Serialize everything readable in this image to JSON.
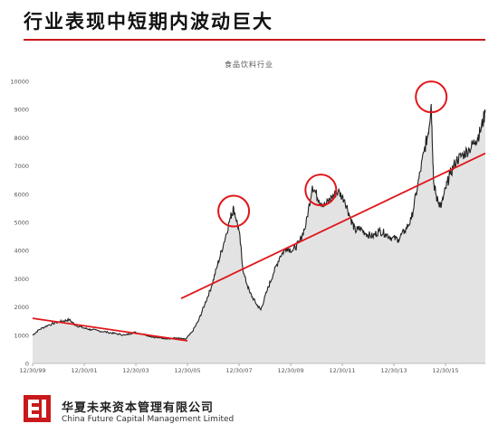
{
  "slide_title": "行业表现中短期内波动巨大",
  "company": {
    "name_cn": "华夏未来资本管理有限公司",
    "name_en": "China Future Capital Management Limited"
  },
  "colors": {
    "title_rule": "#c8191b",
    "trend": "#e0161a",
    "series_line": "#222222",
    "series_fill": "#e3e3e3",
    "circle": "#e0161a"
  },
  "chart_data": {
    "type": "area",
    "title": "食品饮料行业",
    "xlabel": "",
    "ylabel": "",
    "ylim": [
      0,
      10000
    ],
    "yticks": [
      0,
      1000,
      2000,
      3000,
      4000,
      5000,
      6000,
      7000,
      8000,
      9000,
      10000
    ],
    "xlim": [
      "1999-12-30",
      "2017-07-15"
    ],
    "xticks": [
      {
        "date": "1999-12-30",
        "label": "12/30/99"
      },
      {
        "date": "2001-12-30",
        "label": "12/30/01"
      },
      {
        "date": "2003-12-30",
        "label": "12/30/03"
      },
      {
        "date": "2005-12-30",
        "label": "12/30/05"
      },
      {
        "date": "2007-12-30",
        "label": "12/30/07"
      },
      {
        "date": "2009-12-30",
        "label": "12/30/09"
      },
      {
        "date": "2011-12-30",
        "label": "12/30/11"
      },
      {
        "date": "2013-12-30",
        "label": "12/30/13"
      },
      {
        "date": "2015-12-30",
        "label": "12/30/15"
      }
    ],
    "grid": false,
    "legend": "none",
    "series": [
      {
        "x": [
          "1999-12-30",
          "2000-04-01",
          "2000-08-01",
          "2000-12-01",
          "2001-03-01",
          "2001-06-01",
          "2001-09-01",
          "2001-12-30",
          "2002-04-01",
          "2002-08-01",
          "2002-12-01",
          "2003-04-01",
          "2003-08-01",
          "2003-12-01",
          "2004-04-01",
          "2004-08-01",
          "2004-12-01",
          "2005-04-01",
          "2005-08-01",
          "2005-12-01",
          "2006-03-01",
          "2006-06-01",
          "2006-09-01",
          "2006-12-01",
          "2007-03-01",
          "2007-06-01",
          "2007-09-01",
          "2007-10-15",
          "2007-12-30",
          "2008-03-01",
          "2008-06-01",
          "2008-09-01",
          "2008-11-01",
          "2009-02-01",
          "2009-05-01",
          "2009-08-01",
          "2009-11-01",
          "2010-02-01",
          "2010-05-01",
          "2010-08-01",
          "2010-11-01",
          "2011-02-01",
          "2011-05-01",
          "2011-08-01",
          "2011-11-01",
          "2012-02-01",
          "2012-05-01",
          "2012-07-01",
          "2012-09-01",
          "2012-12-01",
          "2013-03-01",
          "2013-06-01",
          "2013-09-01",
          "2013-12-01",
          "2014-03-01",
          "2014-06-01",
          "2014-09-01",
          "2014-12-01",
          "2015-03-01",
          "2015-05-01",
          "2015-06-10",
          "2015-07-15",
          "2015-09-01",
          "2015-11-01",
          "2016-01-01",
          "2016-03-01",
          "2016-06-01",
          "2016-09-01",
          "2016-12-01",
          "2017-03-01",
          "2017-05-01",
          "2017-07-15"
        ],
        "values": [
          1000,
          1200,
          1350,
          1450,
          1500,
          1550,
          1350,
          1250,
          1200,
          1150,
          1100,
          1050,
          1000,
          1100,
          1050,
          950,
          900,
          880,
          900,
          850,
          1100,
          1500,
          2100,
          2700,
          3500,
          4300,
          5200,
          5500,
          4700,
          3200,
          2500,
          2100,
          1900,
          2600,
          3200,
          3800,
          4100,
          4000,
          4300,
          4900,
          6300,
          5800,
          5600,
          5900,
          6100,
          5800,
          5100,
          4700,
          4800,
          4600,
          4500,
          4700,
          4600,
          4450,
          4400,
          4700,
          5100,
          6300,
          7500,
          8200,
          9200,
          6400,
          5800,
          5600,
          6200,
          6700,
          7200,
          7400,
          7600,
          7900,
          8200,
          8900
        ]
      }
    ],
    "annotations": [
      {
        "type": "trendline",
        "from": {
          "x": "1999-12-30",
          "y": 1600
        },
        "to": {
          "x": "2005-12-30",
          "y": 800
        }
      },
      {
        "type": "trendline",
        "from": {
          "x": "2005-10-01",
          "y": 2300
        },
        "to": {
          "x": "2017-07-15",
          "y": 7450
        }
      },
      {
        "type": "circle",
        "x": "2007-10-15",
        "y": 5400
      },
      {
        "type": "circle",
        "x": "2011-03-01",
        "y": 6150
      },
      {
        "type": "circle",
        "x": "2015-06-10",
        "y": 9450
      }
    ]
  }
}
